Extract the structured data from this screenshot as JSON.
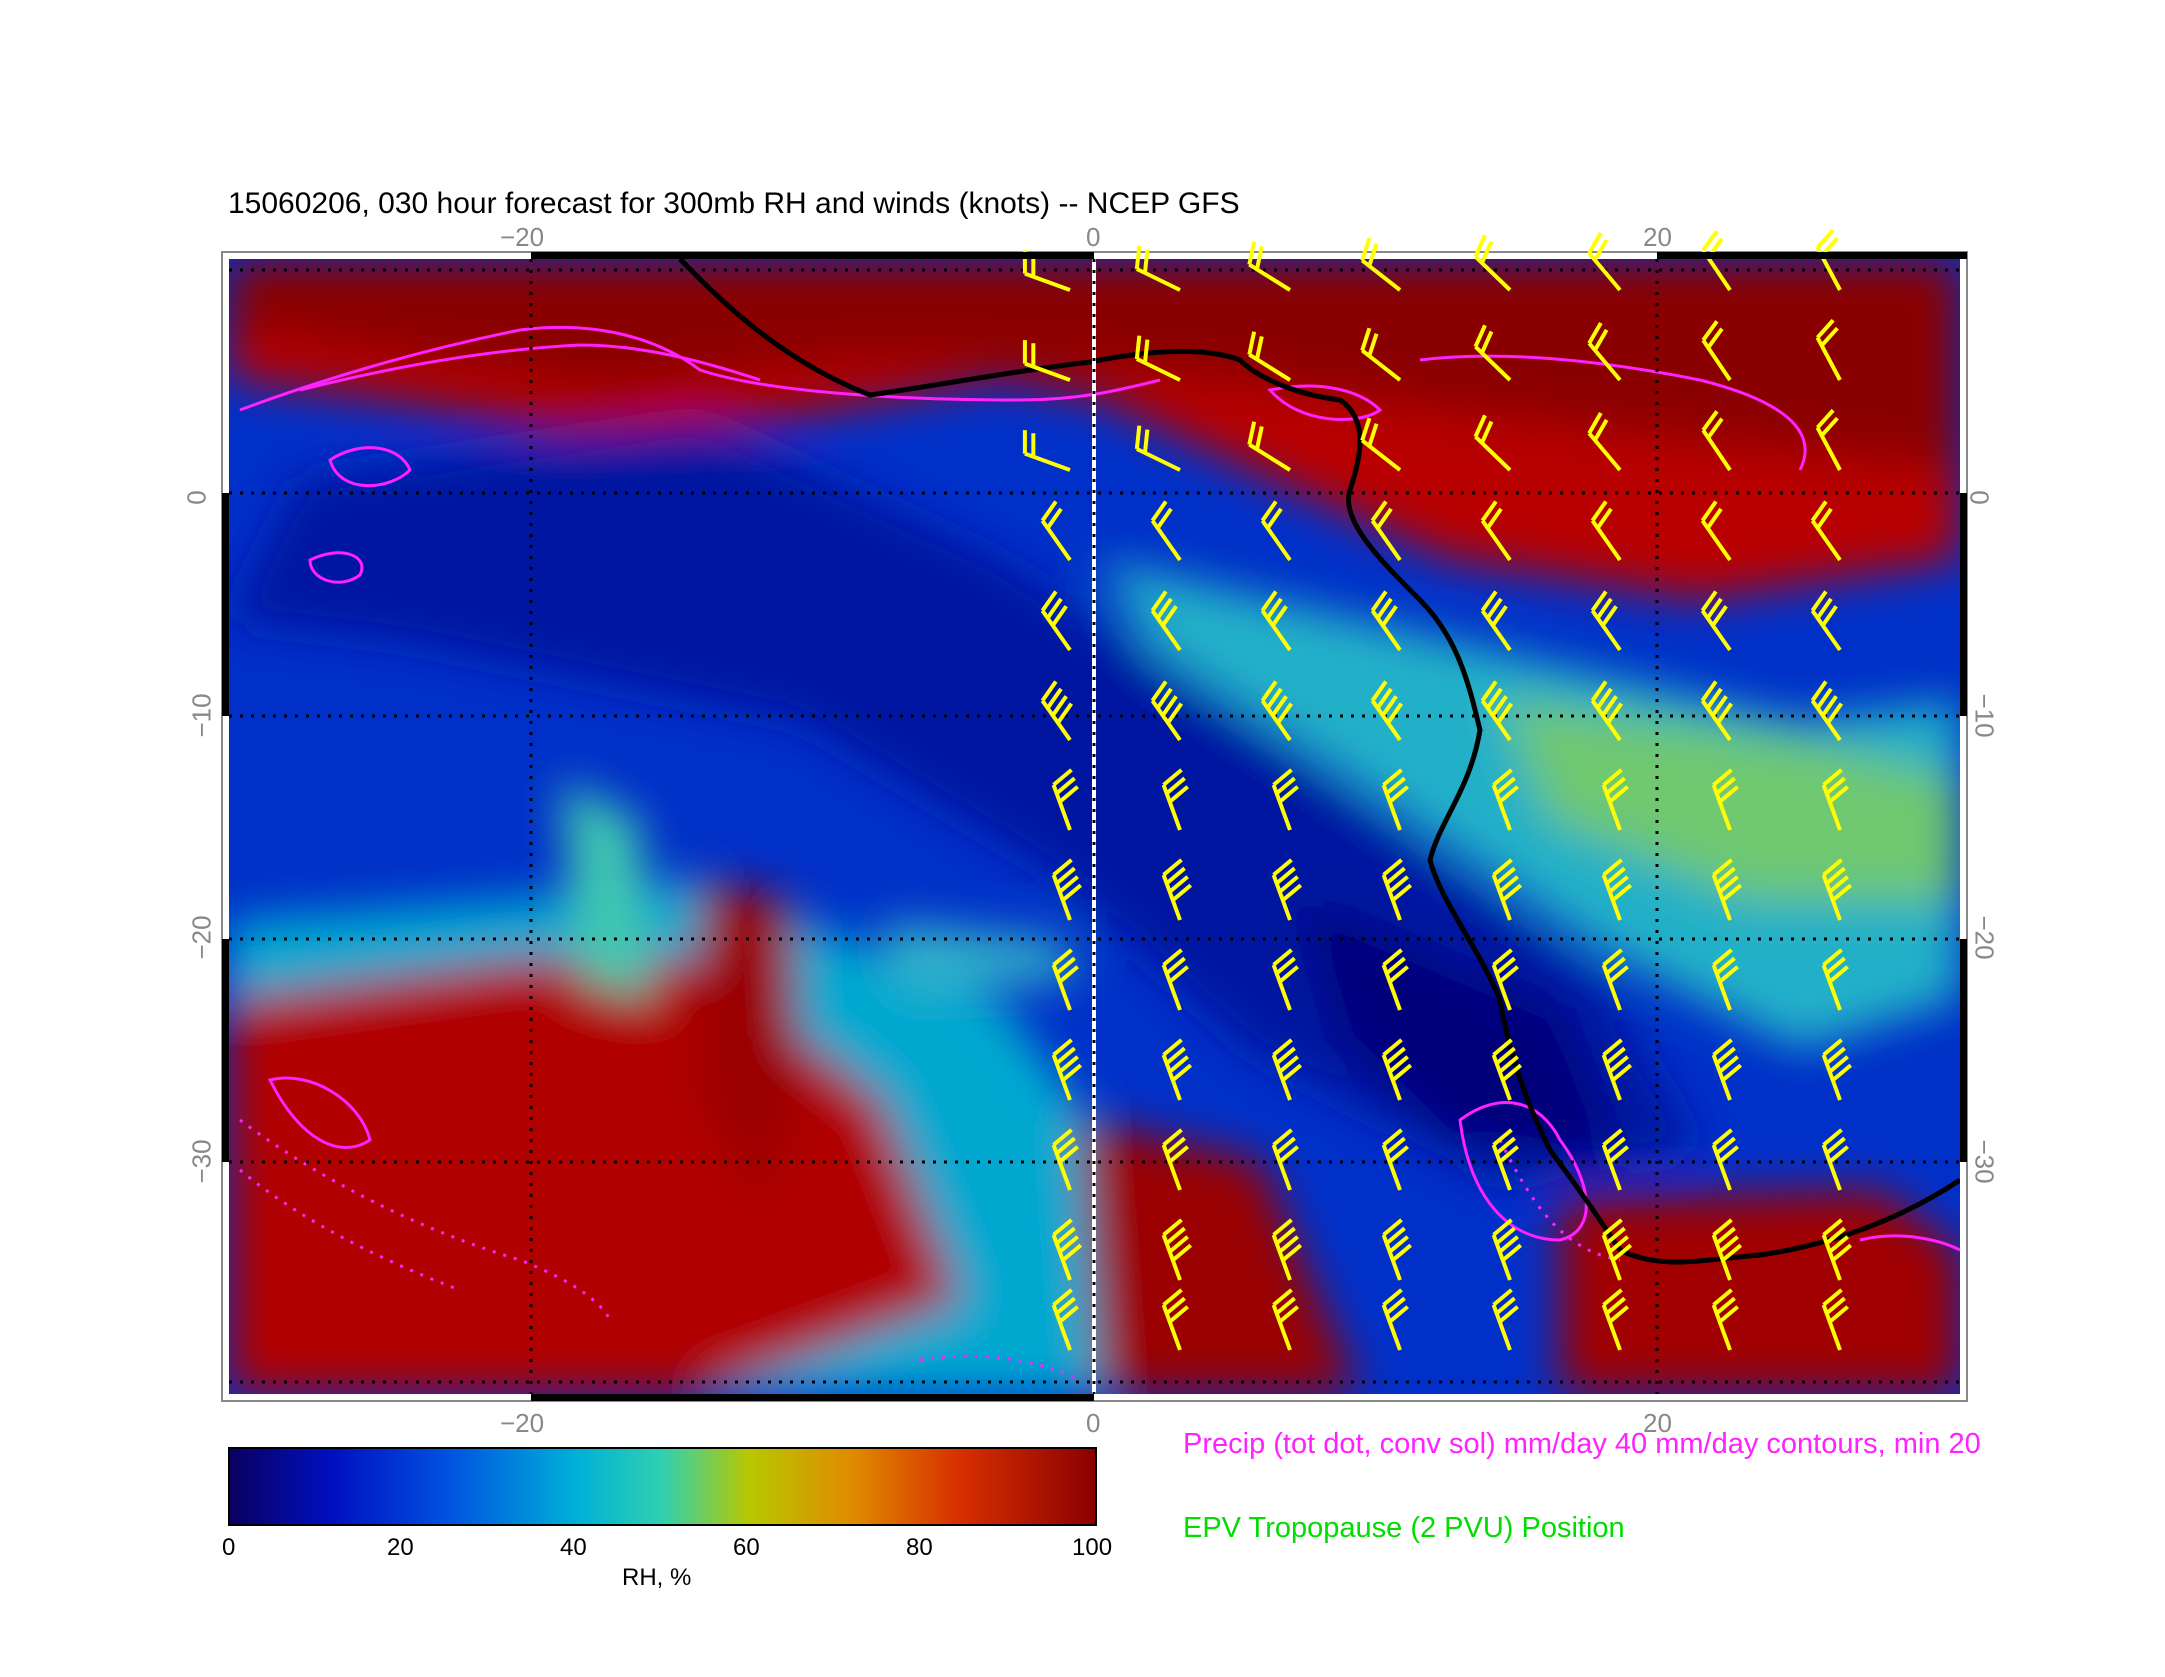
{
  "title": "15060206, 030 hour forecast for 300mb RH and winds (knots) -- NCEP GFS",
  "map": {
    "field": "RH",
    "longitude_ticks": [
      "−20",
      "0",
      "20"
    ],
    "latitude_ticks": [
      "0",
      "−10",
      "−20",
      "−30"
    ],
    "lon_range": [
      -31,
      31
    ],
    "lat_range": [
      -40,
      10
    ],
    "gridlines": "dotted",
    "colors": {
      "precip_contours": "#ff22ff",
      "wind_barbs": "#ffff00",
      "tropopause_line": "#000000",
      "meridian_line": "#ffffff"
    }
  },
  "colorbar": {
    "label": "RH, %",
    "ticks": [
      "0",
      "20",
      "40",
      "60",
      "80",
      "100"
    ],
    "range": [
      0,
      100
    ],
    "colormap": [
      "#0a0060",
      "#0010c0",
      "#0050e0",
      "#00b0d8",
      "#30d0b0",
      "#b8c800",
      "#e08a00",
      "#d83000",
      "#8a0000"
    ]
  },
  "legend": {
    "precip": {
      "text": "Precip (tot dot, conv sol) mm/day 40 mm/day contours, min 20",
      "color": "#ff22ff"
    },
    "epv": {
      "text": "EPV Tropopause (2 PVU) Position",
      "color": "#00dd00"
    }
  }
}
